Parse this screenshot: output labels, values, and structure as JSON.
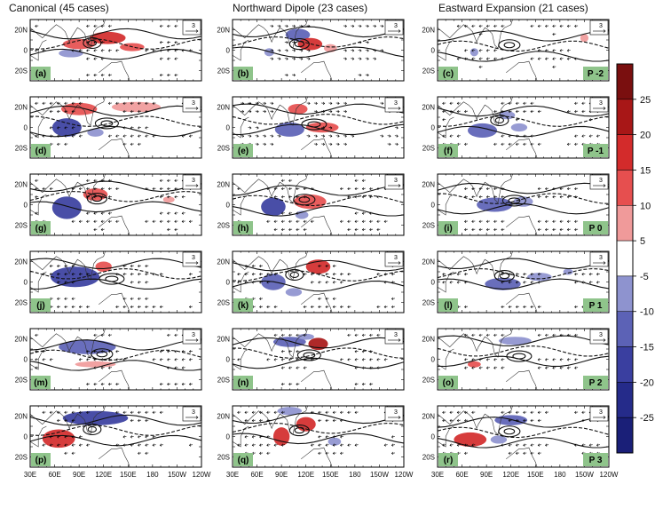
{
  "chart_data": {
    "type": "heatmap",
    "columns": [
      {
        "title": "Canonical (45 cases)"
      },
      {
        "title": "Northward Dipole (23 cases)"
      },
      {
        "title": "Eastward Expansion (21 cases)"
      }
    ],
    "panel_labels": [
      "(a)",
      "(b)",
      "(c)",
      "(d)",
      "(e)",
      "(f)",
      "(g)",
      "(h)",
      "(i)",
      "(j)",
      "(k)",
      "(l)",
      "(m)",
      "(n)",
      "(o)",
      "(p)",
      "(q)",
      "(r)"
    ],
    "phase_labels": [
      "P -2",
      "P -1",
      "P 0",
      "P 1",
      "P 2",
      "P 3"
    ],
    "lat_ticks": [
      "20N",
      "0",
      "20S"
    ],
    "lon_ticks": [
      "30E",
      "60E",
      "90E",
      "120E",
      "150E",
      "180",
      "150W",
      "120W"
    ],
    "vector_scale_label": "3",
    "colorbar": {
      "levels": [
        -30,
        -25,
        -20,
        -15,
        -10,
        -5,
        5,
        10,
        15,
        20,
        25,
        30
      ],
      "tick_labels": [
        "25",
        "20",
        "15",
        "10",
        "5",
        "-5",
        "-10",
        "-15",
        "-20",
        "-25"
      ],
      "colors": [
        "#7a0f0f",
        "#a81717",
        "#d32b2b",
        "#e64f4f",
        "#f09a9a",
        "#ffffff",
        "#8e93cf",
        "#5c62b6",
        "#3a3fa0",
        "#252b8a",
        "#1a1f78"
      ]
    },
    "anomalies": [
      [
        {
          "lon": 90,
          "lat": 6,
          "v": 12,
          "rx": 20,
          "ry": 5
        },
        {
          "lon": 125,
          "lat": 12,
          "v": 15,
          "rx": 22,
          "ry": 6
        },
        {
          "lon": 155,
          "lat": 3,
          "v": 10,
          "rx": 15,
          "ry": 4
        },
        {
          "lon": 80,
          "lat": -3,
          "v": -10,
          "rx": 15,
          "ry": 4
        }
      ],
      [
        {
          "lon": 110,
          "lat": 15,
          "v": -12,
          "rx": 15,
          "ry": 6
        },
        {
          "lon": 75,
          "lat": -2,
          "v": -8,
          "rx": 6,
          "ry": 4
        },
        {
          "lon": 125,
          "lat": 6,
          "v": 15,
          "rx": 15,
          "ry": 6
        },
        {
          "lon": 150,
          "lat": 2,
          "v": 8,
          "rx": 8,
          "ry": 4
        }
      ],
      [
        {
          "lon": 75,
          "lat": -2,
          "v": -8,
          "rx": 5,
          "ry": 4
        },
        {
          "lon": 210,
          "lat": 12,
          "v": 8,
          "rx": 5,
          "ry": 4
        }
      ],
      [
        {
          "lon": 90,
          "lat": 18,
          "v": 14,
          "rx": 22,
          "ry": 6
        },
        {
          "lon": 160,
          "lat": 20,
          "v": 8,
          "rx": 30,
          "ry": 5
        },
        {
          "lon": 75,
          "lat": 0,
          "v": -20,
          "rx": 18,
          "ry": 9
        },
        {
          "lon": 110,
          "lat": -5,
          "v": -8,
          "rx": 10,
          "ry": 4
        }
      ],
      [
        {
          "lon": 100,
          "lat": -2,
          "v": -15,
          "rx": 18,
          "ry": 7
        },
        {
          "lon": 140,
          "lat": 0,
          "v": 14,
          "rx": 20,
          "ry": 5
        },
        {
          "lon": 110,
          "lat": 18,
          "v": 10,
          "rx": 12,
          "ry": 5
        }
      ],
      [
        {
          "lon": 85,
          "lat": -3,
          "v": -12,
          "rx": 18,
          "ry": 7
        },
        {
          "lon": 115,
          "lat": 12,
          "v": -8,
          "rx": 10,
          "ry": 4
        },
        {
          "lon": 130,
          "lat": 0,
          "v": -6,
          "rx": 10,
          "ry": 4
        }
      ],
      [
        {
          "lon": 75,
          "lat": -3,
          "v": -20,
          "rx": 18,
          "ry": 11
        },
        {
          "lon": 110,
          "lat": 10,
          "v": 12,
          "rx": 15,
          "ry": 6
        },
        {
          "lon": 200,
          "lat": 5,
          "v": 8,
          "rx": 7,
          "ry": 3
        }
      ],
      [
        {
          "lon": 80,
          "lat": -2,
          "v": -18,
          "rx": 15,
          "ry": 9
        },
        {
          "lon": 125,
          "lat": 3,
          "v": 14,
          "rx": 20,
          "ry": 7
        },
        {
          "lon": 115,
          "lat": -10,
          "v": -10,
          "rx": 8,
          "ry": 4
        }
      ],
      [
        {
          "lon": 100,
          "lat": 0,
          "v": -12,
          "rx": 22,
          "ry": 7
        },
        {
          "lon": 135,
          "lat": 3,
          "v": -10,
          "rx": 12,
          "ry": 5
        }
      ],
      [
        {
          "lon": 85,
          "lat": 5,
          "v": -20,
          "rx": 30,
          "ry": 10
        },
        {
          "lon": 120,
          "lat": 15,
          "v": 12,
          "rx": 10,
          "ry": 5
        }
      ],
      [
        {
          "lon": 80,
          "lat": 0,
          "v": -15,
          "rx": 15,
          "ry": 8
        },
        {
          "lon": 135,
          "lat": 15,
          "v": 18,
          "rx": 15,
          "ry": 7
        },
        {
          "lon": 105,
          "lat": -10,
          "v": -8,
          "rx": 10,
          "ry": 4
        }
      ],
      [
        {
          "lon": 110,
          "lat": -2,
          "v": -14,
          "rx": 22,
          "ry": 6
        },
        {
          "lon": 155,
          "lat": 5,
          "v": -10,
          "rx": 15,
          "ry": 4
        },
        {
          "lon": 190,
          "lat": 10,
          "v": -6,
          "rx": 6,
          "ry": 3
        }
      ],
      [
        {
          "lon": 100,
          "lat": 12,
          "v": -15,
          "rx": 35,
          "ry": 7
        },
        {
          "lon": 110,
          "lat": -5,
          "v": 8,
          "rx": 25,
          "ry": 3
        }
      ],
      [
        {
          "lon": 135,
          "lat": 15,
          "v": 20,
          "rx": 12,
          "ry": 6
        },
        {
          "lon": 100,
          "lat": 17,
          "v": -12,
          "rx": 20,
          "ry": 5
        },
        {
          "lon": 120,
          "lat": 22,
          "v": -8,
          "rx": 10,
          "ry": 3
        }
      ],
      [
        {
          "lon": 125,
          "lat": 18,
          "v": -10,
          "rx": 20,
          "ry": 4
        },
        {
          "lon": 75,
          "lat": -5,
          "v": 10,
          "rx": 8,
          "ry": 3
        }
      ],
      [
        {
          "lon": 110,
          "lat": 18,
          "v": -20,
          "rx": 40,
          "ry": 7
        },
        {
          "lon": 65,
          "lat": -2,
          "v": 18,
          "rx": 20,
          "ry": 9
        }
      ],
      [
        {
          "lon": 120,
          "lat": 12,
          "v": 18,
          "rx": 12,
          "ry": 7
        },
        {
          "lon": 90,
          "lat": 0,
          "v": 15,
          "rx": 10,
          "ry": 9
        },
        {
          "lon": 100,
          "lat": 25,
          "v": -10,
          "rx": 15,
          "ry": 4
        },
        {
          "lon": 155,
          "lat": -5,
          "v": -8,
          "rx": 8,
          "ry": 4
        }
      ],
      [
        {
          "lon": 70,
          "lat": -3,
          "v": 18,
          "rx": 20,
          "ry": 7
        },
        {
          "lon": 105,
          "lat": -3,
          "v": -10,
          "rx": 10,
          "ry": 4
        },
        {
          "lon": 120,
          "lat": 16,
          "v": -12,
          "rx": 20,
          "ry": 5
        }
      ]
    ]
  }
}
